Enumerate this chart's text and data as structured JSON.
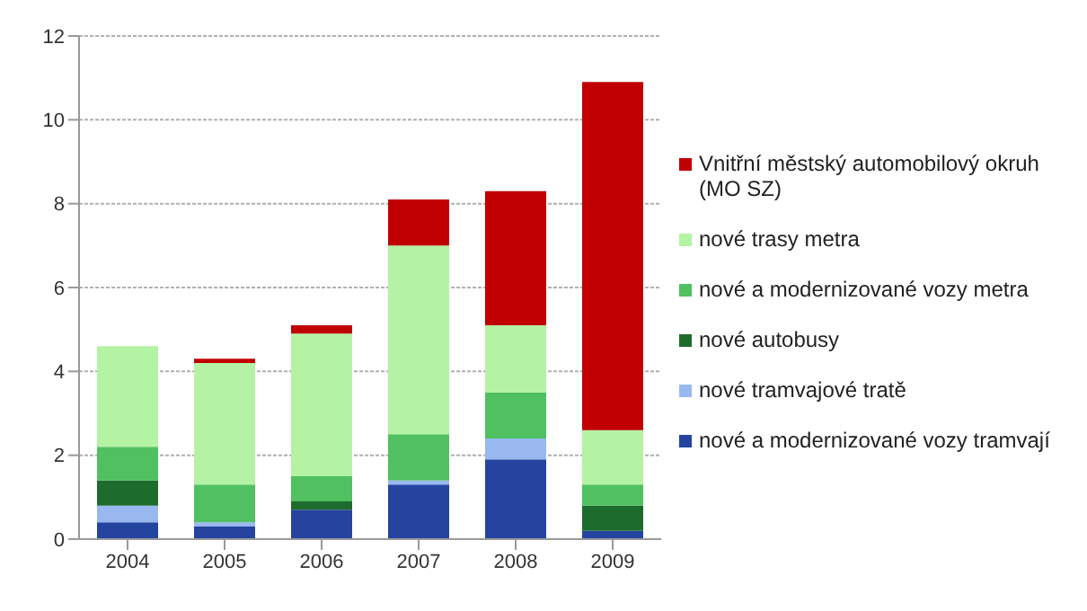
{
  "chart_data": {
    "type": "bar",
    "stacked": true,
    "categories": [
      "2004",
      "2005",
      "2006",
      "2007",
      "2008",
      "2009"
    ],
    "series": [
      {
        "name": "nové a modernizované vozy tramvají",
        "color": "#2444a0",
        "values": [
          0.4,
          0.3,
          0.7,
          1.3,
          1.9,
          0.2
        ]
      },
      {
        "name": "nové tramvajové tratě",
        "color": "#99b8f0",
        "values": [
          0.4,
          0.1,
          0,
          0.1,
          0.5,
          0
        ]
      },
      {
        "name": "nové autobusy",
        "color": "#1e6b2e",
        "values": [
          0.6,
          0,
          0.2,
          0,
          0,
          0.6
        ]
      },
      {
        "name": "nové a modernizované vozy metra",
        "color": "#50c060",
        "values": [
          0.8,
          0.9,
          0.6,
          1.1,
          1.1,
          0.5
        ]
      },
      {
        "name": "nové trasy metra",
        "color": "#b4f2a4",
        "values": [
          2.4,
          2.9,
          3.4,
          4.5,
          1.6,
          1.3
        ]
      },
      {
        "name": "Vnitřní městský automobilový okruh (MO SZ)",
        "color": "#c00000",
        "values": [
          0,
          0.1,
          0.2,
          1.1,
          3.2,
          8.3
        ]
      }
    ],
    "ylim": [
      0,
      12
    ],
    "yticks": [
      0,
      2,
      4,
      6,
      8,
      10,
      12
    ],
    "grid": "y",
    "legend": "right"
  }
}
